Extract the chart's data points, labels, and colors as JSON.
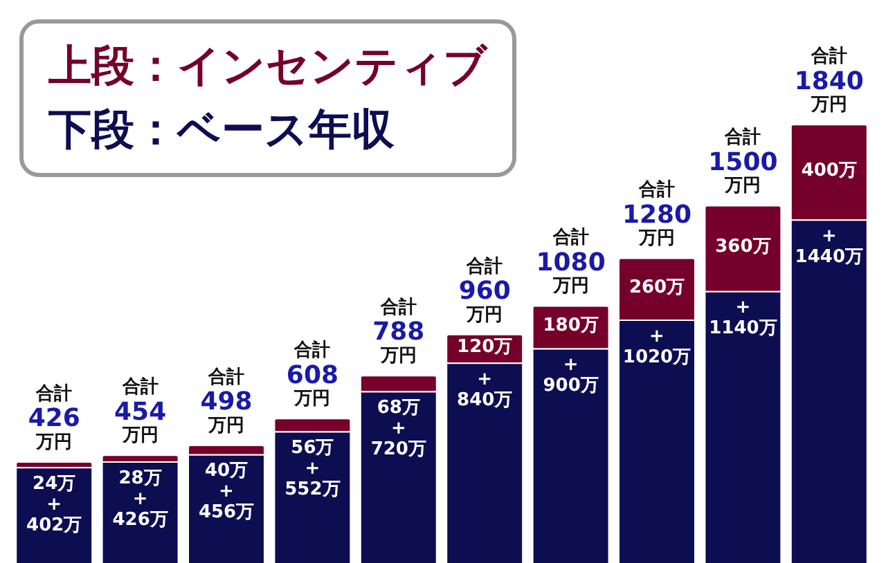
{
  "chart_data": {
    "type": "bar",
    "stacked": true,
    "legend": "top left",
    "categories": [
      null,
      null,
      null,
      null,
      null,
      null,
      null,
      null,
      null,
      null
    ],
    "series": [
      {
        "name": "下段：ベース年収",
        "color": "#0d0d52",
        "values": [
          402,
          426,
          456,
          552,
          720,
          840,
          900,
          1020,
          1140,
          1440
        ],
        "value_labels": [
          "+\n402万",
          "+\n426万",
          "+\n456万",
          "+\n552万",
          "+\n720万",
          "+\n840万",
          "+\n900万",
          "+\n1020万",
          "+\n1140万",
          "+\n1440万"
        ]
      },
      {
        "name": "上段：インセンティブ",
        "color": "#75002a",
        "values": [
          24,
          28,
          40,
          56,
          68,
          120,
          180,
          260,
          360,
          400
        ],
        "value_labels": [
          "24万",
          "28万",
          "40万",
          "56万",
          "68万",
          "120万",
          "180万",
          "260万",
          "360万",
          "400万"
        ]
      }
    ],
    "totals": [
      "合計\n426\n万円",
      "合計\n454\n万円",
      "合計\n498\n万円",
      "合計\n608\n万円",
      "合計\n788\n万円",
      "合計\n960\n万円",
      "合計\n1080\n万円",
      "合計\n1280\n万円",
      "合計\n1500\n万円",
      "合計\n1840\n万円"
    ]
  }
}
